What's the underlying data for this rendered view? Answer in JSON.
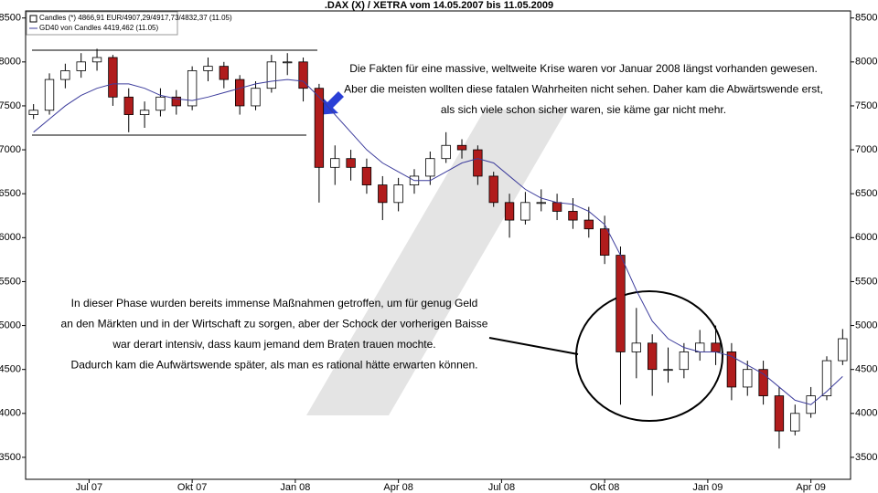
{
  "chart_data": {
    "type": "candlestick",
    "title": ".DAX (X) / XETRA vom 14.05.2007 bis 11.05.2009",
    "legend": [
      "Candles (*) 4866,91 EUR/4907,29/4917,73/4832,37 (11.05)",
      "GD40 von Candles 4419,462 (11.05)"
    ],
    "up_color": "#ffffff",
    "down_color": "#b01c1c",
    "ma_color": "#3c3c9c",
    "open": [
      7400,
      7450,
      7800,
      7900,
      8000,
      8050,
      7600,
      7400,
      7450,
      7600,
      7500,
      7900,
      7950,
      7800,
      7500,
      7700,
      8000,
      8000,
      7700,
      6800,
      6900,
      6800,
      6600,
      6400,
      6600,
      6700,
      6900,
      7050,
      7000,
      6700,
      6400,
      6200,
      6400,
      6400,
      6300,
      6200,
      6100,
      5800,
      4700,
      4800,
      4500,
      4500,
      4700,
      4800,
      4700,
      4300,
      4500,
      4200,
      3800,
      4000,
      4200,
      4600
    ],
    "high": [
      7520,
      7870,
      7980,
      8100,
      8150,
      8080,
      7700,
      7550,
      7700,
      7680,
      7950,
      8050,
      8000,
      7850,
      7780,
      8080,
      8100,
      8050,
      7750,
      7050,
      7000,
      6900,
      6700,
      6680,
      6780,
      6980,
      7200,
      7120,
      7050,
      6750,
      6500,
      6520,
      6550,
      6500,
      6450,
      6350,
      6250,
      5900,
      5200,
      4900,
      4750,
      4800,
      4950,
      5000,
      4800,
      4600,
      4600,
      4300,
      4100,
      4300,
      4650,
      4960
    ],
    "low": [
      7350,
      7400,
      7700,
      7820,
      7900,
      7500,
      7200,
      7250,
      7380,
      7400,
      7450,
      7780,
      7700,
      7400,
      7450,
      7650,
      7850,
      7550,
      6400,
      6600,
      6650,
      6500,
      6200,
      6300,
      6500,
      6600,
      6850,
      6900,
      6600,
      6350,
      6000,
      6150,
      6300,
      6200,
      6100,
      6000,
      5700,
      4100,
      4400,
      4200,
      4350,
      4400,
      4600,
      4550,
      4150,
      4200,
      4100,
      3600,
      3750,
      3950,
      4150,
      4550
    ],
    "close": [
      7450,
      7800,
      7900,
      8000,
      8050,
      7600,
      7400,
      7450,
      7600,
      7500,
      7900,
      7950,
      7800,
      7500,
      7700,
      8000,
      8000,
      7700,
      6800,
      6900,
      6800,
      6600,
      6400,
      6600,
      6700,
      6900,
      7050,
      7000,
      6700,
      6400,
      6200,
      6400,
      6400,
      6300,
      6200,
      6100,
      5800,
      4700,
      4800,
      4500,
      4500,
      4700,
      4800,
      4700,
      4300,
      4500,
      4200,
      3800,
      4000,
      4200,
      4600,
      4850
    ],
    "ma": [
      7200,
      7350,
      7500,
      7620,
      7700,
      7750,
      7750,
      7700,
      7620,
      7580,
      7560,
      7600,
      7650,
      7700,
      7750,
      7780,
      7800,
      7780,
      7600,
      7400,
      7200,
      7000,
      6850,
      6750,
      6650,
      6650,
      6750,
      6850,
      6900,
      6850,
      6700,
      6550,
      6450,
      6400,
      6380,
      6300,
      6150,
      5800,
      5400,
      5050,
      4850,
      4750,
      4700,
      4700,
      4650,
      4550,
      4450,
      4300,
      4150,
      4100,
      4250,
      4420
    ],
    "xlim": [
      -0.5,
      51.5
    ],
    "xticks": [
      {
        "value": 3.5,
        "label": "Jul 07"
      },
      {
        "value": 10,
        "label": "Okt 07"
      },
      {
        "value": 16.5,
        "label": "Jan 08"
      },
      {
        "value": 23,
        "label": "Apr 08"
      },
      {
        "value": 29.5,
        "label": "Jul 08"
      },
      {
        "value": 36,
        "label": "Okt 08"
      },
      {
        "value": 42.5,
        "label": "Jan 09"
      },
      {
        "value": 49,
        "label": "Apr 09"
      }
    ],
    "ylim": [
      3250,
      8580
    ],
    "yticks": [
      3500,
      4000,
      4500,
      5000,
      5500,
      6000,
      6500,
      7000,
      7500,
      8000,
      8500
    ],
    "annotations": [
      [
        "Die Fakten für eine massive, weltweite Krise waren vor Januar 2008 längst vorhanden gewesen.",
        "Aber die meisten wollten diese fatalen Wahrheiten nicht sehen. Daher kam die Abwärtswende erst,",
        "als sich viele schon sicher waren, sie käme gar nicht mehr."
      ],
      [
        "In dieser Phase wurden bereits immense Maßnahmen getroffen, um für genug Geld",
        "an den Märkten und in der Wirtschaft zu sorgen, aber der Schock der vorherigen Baisse",
        "war derart intensiv, dass kaum jemand dem Braten trauen mochte.",
        "Dadurch kam die Aufwärtswende später, als man es rational hätte erwarten können."
      ]
    ]
  }
}
